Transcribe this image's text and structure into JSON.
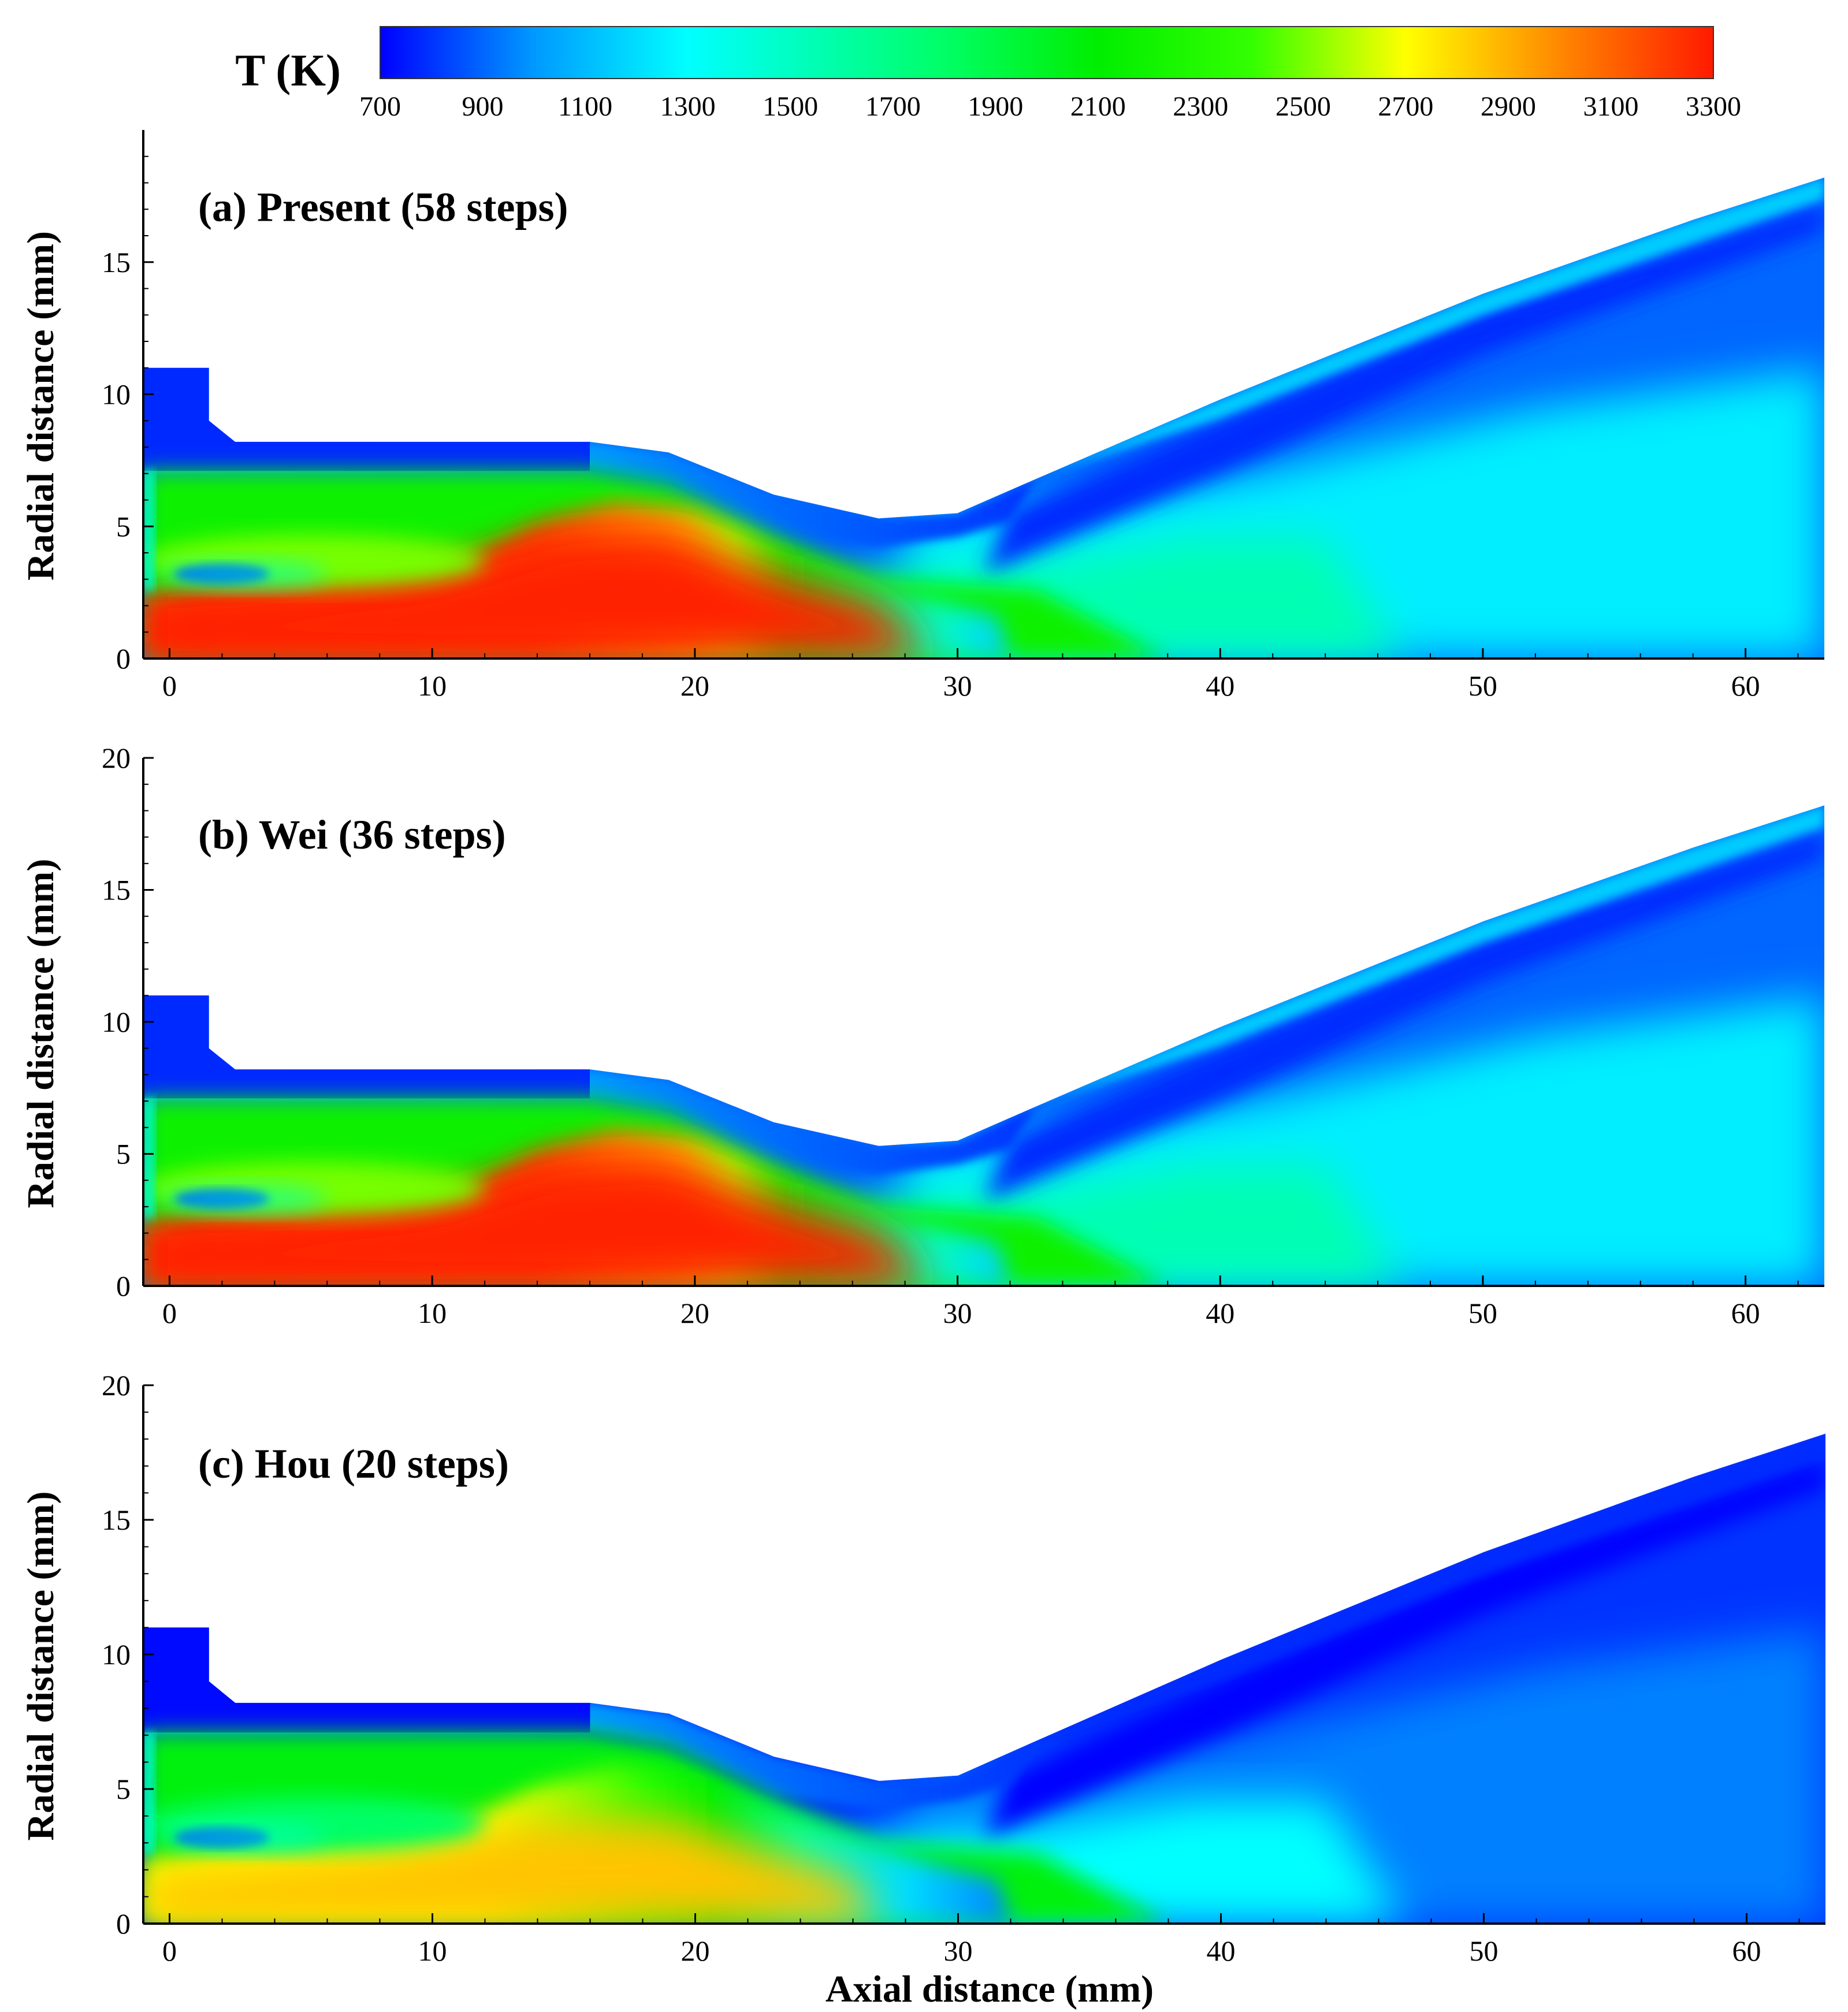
{
  "chart_data": {
    "type": "heatmap",
    "description_title": "Temperature contours",
    "colorbar": {
      "label": "T (K)",
      "min": 700,
      "max": 3300,
      "ticks": [
        700,
        900,
        1100,
        1300,
        1500,
        1700,
        1900,
        2100,
        2300,
        2500,
        2700,
        2900,
        3100,
        3300
      ],
      "stops": [
        {
          "value": 700,
          "color": "#0000ff"
        },
        {
          "value": 1000,
          "color": "#0099ff"
        },
        {
          "value": 1300,
          "color": "#00ffff"
        },
        {
          "value": 1800,
          "color": "#00ff66"
        },
        {
          "value": 2100,
          "color": "#00ee00"
        },
        {
          "value": 2400,
          "color": "#33ff00"
        },
        {
          "value": 2700,
          "color": "#ffff00"
        },
        {
          "value": 3000,
          "color": "#ff8800"
        },
        {
          "value": 3300,
          "color": "#ff1a00"
        }
      ]
    },
    "xlabel": "Axial distance (mm)",
    "ylabel": "Radial distance (mm)",
    "xlim": [
      -1,
      63
    ],
    "ylim": [
      0,
      20
    ],
    "x_ticks": [
      0,
      10,
      20,
      30,
      40,
      50,
      60
    ],
    "y_ticks": [
      0,
      5,
      10,
      15
    ],
    "y_ticks_full": [
      0,
      5,
      10,
      15,
      20
    ],
    "domain_outline_mm": [
      [
        -1,
        0
      ],
      [
        -1,
        11
      ],
      [
        1.5,
        11
      ],
      [
        1.5,
        9
      ],
      [
        2.5,
        8.2
      ],
      [
        16,
        8.2
      ],
      [
        19,
        7.8
      ],
      [
        23,
        6.2
      ],
      [
        27,
        5.3
      ],
      [
        30,
        5.5
      ],
      [
        33,
        6.8
      ],
      [
        40,
        9.8
      ],
      [
        50,
        13.8
      ],
      [
        58,
        16.6
      ],
      [
        63,
        18.2
      ],
      [
        63,
        0
      ]
    ],
    "inner_wall_mm": [
      [
        -1,
        7.1
      ],
      [
        16,
        7.1
      ],
      [
        19,
        6.6
      ],
      [
        23,
        4.6
      ],
      [
        27,
        3.0
      ],
      [
        30,
        2.8
      ]
    ],
    "panels": [
      {
        "title": "(a) Present (58 steps)",
        "peak_T": 3300,
        "cold_pocket": {
          "x": 2,
          "y": 3.2
        },
        "flame_region": {
          "x_range": [
            0,
            31
          ],
          "y_range": [
            0,
            6
          ]
        }
      },
      {
        "title": "(b) Wei (36 steps)",
        "peak_T": 3300,
        "cold_pocket": {
          "x": 2,
          "y": 3.3
        },
        "flame_region": {
          "x_range": [
            0,
            31
          ],
          "y_range": [
            0,
            6
          ]
        }
      },
      {
        "title": "(c) Hou (20 steps)",
        "peak_T": 2950,
        "cold_pocket": {
          "x": 2,
          "y": 3.2
        },
        "flame_region": {
          "x_range": [
            0,
            29
          ],
          "y_range": [
            0,
            5.5
          ]
        }
      }
    ]
  }
}
